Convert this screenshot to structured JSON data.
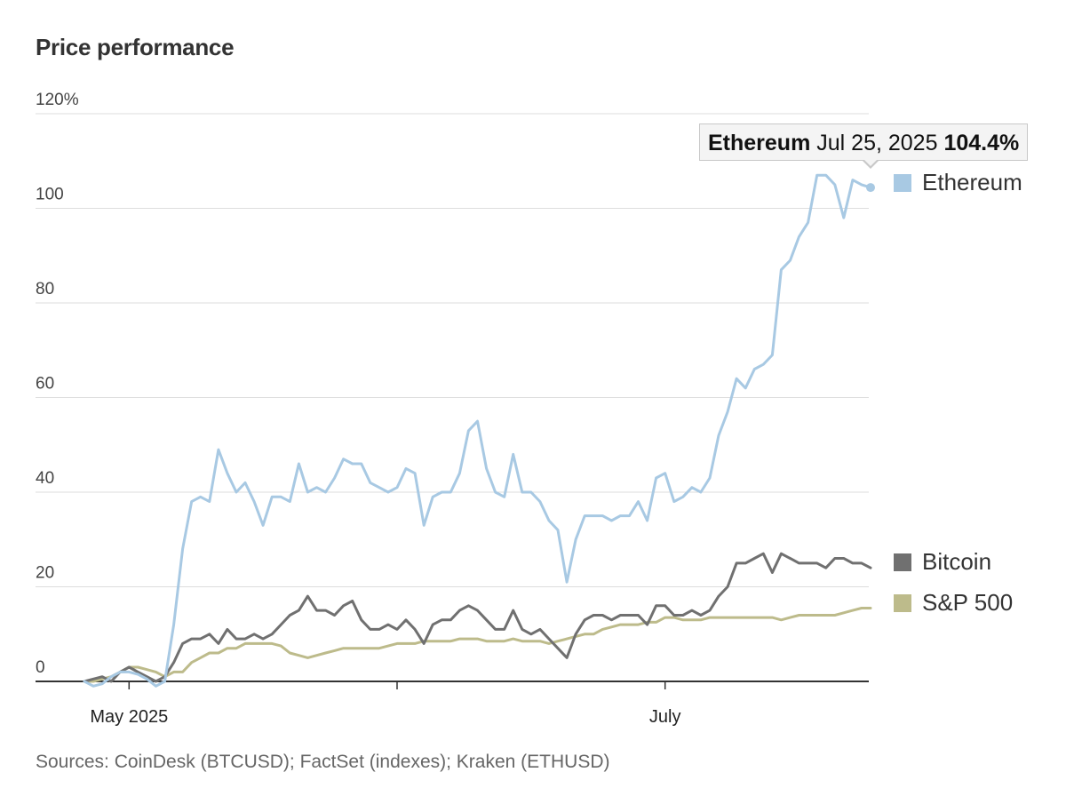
{
  "title": "Price performance",
  "source": "Sources: CoinDesk (BTCUSD); FactSet (indexes); Kraken (ETHUSD)",
  "tooltip": {
    "series": "Ethereum",
    "date": "Jul 25, 2025",
    "value": "104.4%"
  },
  "colors": {
    "ethereum": "#a8c9e3",
    "bitcoin": "#707070",
    "sp500": "#bdbb8b",
    "grid": "#dddddd",
    "axis": "#333333"
  },
  "chart_data": {
    "type": "line",
    "title": "Price performance",
    "xlabel": "",
    "ylabel": "",
    "ylim": [
      0,
      120
    ],
    "y_ticks": [
      0,
      20,
      40,
      60,
      80,
      100,
      120
    ],
    "y_tick_labels": [
      "0",
      "20",
      "40",
      "60",
      "80",
      "100",
      "120%"
    ],
    "x_tick_labels": [
      {
        "label": "May 2025",
        "day": 5
      },
      {
        "label": "",
        "day": 35
      },
      {
        "label": "July",
        "day": 65
      }
    ],
    "x_range_days": [
      0,
      88
    ],
    "legend": [
      {
        "name": "Ethereum",
        "color": "#a8c9e3"
      },
      {
        "name": "Bitcoin",
        "color": "#707070"
      },
      {
        "name": "S&P 500",
        "color": "#bdbb8b"
      }
    ],
    "series": [
      {
        "name": "Ethereum",
        "color": "#a8c9e3",
        "x": [
          0,
          1,
          2,
          3,
          4,
          5,
          6,
          7,
          8,
          9,
          10,
          11,
          12,
          13,
          14,
          15,
          16,
          17,
          18,
          19,
          20,
          21,
          22,
          23,
          24,
          25,
          26,
          27,
          28,
          29,
          30,
          31,
          32,
          33,
          34,
          35,
          36,
          37,
          38,
          39,
          40,
          41,
          42,
          43,
          44,
          45,
          46,
          47,
          48,
          49,
          50,
          51,
          52,
          53,
          54,
          55,
          56,
          57,
          58,
          59,
          60,
          61,
          62,
          63,
          64,
          65,
          66,
          67,
          68,
          69,
          70,
          71,
          72,
          73,
          74,
          75,
          76,
          77,
          78,
          79,
          80,
          81,
          82,
          83,
          84,
          85,
          86,
          87,
          88
        ],
        "values": [
          0,
          -1,
          -0.5,
          1,
          2,
          2,
          1.5,
          0.5,
          -1,
          0,
          12,
          28,
          38,
          39,
          38,
          49,
          44,
          40,
          42,
          38,
          33,
          39,
          39,
          38,
          46,
          40,
          41,
          40,
          43,
          47,
          46,
          46,
          42,
          41,
          40,
          41,
          45,
          44,
          33,
          39,
          40,
          40,
          44,
          53,
          55,
          45,
          40,
          39,
          48,
          40,
          40,
          38,
          34,
          32,
          21,
          30,
          35,
          35,
          35,
          34,
          35,
          35,
          38,
          34,
          43,
          44,
          38,
          39,
          41,
          40,
          43,
          52,
          57,
          64,
          62,
          66,
          67,
          69,
          87,
          89,
          94,
          97,
          107,
          107,
          105,
          98,
          106,
          105,
          104.4
        ]
      },
      {
        "name": "Bitcoin",
        "color": "#707070",
        "x": [
          0,
          1,
          2,
          3,
          4,
          5,
          6,
          7,
          8,
          9,
          10,
          11,
          12,
          13,
          14,
          15,
          16,
          17,
          18,
          19,
          20,
          21,
          22,
          23,
          24,
          25,
          26,
          27,
          28,
          29,
          30,
          31,
          32,
          33,
          34,
          35,
          36,
          37,
          38,
          39,
          40,
          41,
          42,
          43,
          44,
          45,
          46,
          47,
          48,
          49,
          50,
          51,
          52,
          53,
          54,
          55,
          56,
          57,
          58,
          59,
          60,
          61,
          62,
          63,
          64,
          65,
          66,
          67,
          68,
          69,
          70,
          71,
          72,
          73,
          74,
          75,
          76,
          77,
          78,
          79,
          80,
          81,
          82,
          83,
          84,
          85,
          86,
          87,
          88
        ],
        "values": [
          0,
          0.5,
          1,
          0,
          2,
          3,
          2,
          1,
          0,
          1,
          4,
          8,
          9,
          9,
          10,
          8,
          11,
          9,
          9,
          10,
          9,
          10,
          12,
          14,
          15,
          18,
          15,
          15,
          14,
          16,
          17,
          13,
          11,
          11,
          12,
          11,
          13,
          11,
          8,
          12,
          13,
          13,
          15,
          16,
          15,
          13,
          11,
          11,
          15,
          11,
          10,
          11,
          9,
          7,
          5,
          10,
          13,
          14,
          14,
          13,
          14,
          14,
          14,
          12,
          16,
          16,
          14,
          14,
          15,
          14,
          15,
          18,
          20,
          25,
          25,
          26,
          27,
          23,
          27,
          26,
          25,
          25,
          25,
          24,
          26,
          26,
          25,
          25,
          24
        ]
      },
      {
        "name": "S&P 500",
        "color": "#bdbb8b",
        "x": [
          0,
          1,
          2,
          3,
          4,
          5,
          6,
          7,
          8,
          9,
          10,
          11,
          12,
          13,
          14,
          15,
          16,
          17,
          18,
          19,
          20,
          21,
          22,
          23,
          24,
          25,
          26,
          27,
          28,
          29,
          30,
          31,
          32,
          33,
          34,
          35,
          36,
          37,
          38,
          39,
          40,
          41,
          42,
          43,
          44,
          45,
          46,
          47,
          48,
          49,
          50,
          51,
          52,
          53,
          54,
          55,
          56,
          57,
          58,
          59,
          60,
          61,
          62,
          63,
          64,
          65,
          66,
          67,
          68,
          69,
          70,
          71,
          72,
          73,
          74,
          75,
          76,
          77,
          78,
          79,
          80,
          81,
          82,
          83,
          84,
          85,
          86,
          87,
          88
        ],
        "values": [
          0,
          0,
          0.5,
          1,
          2,
          3,
          3,
          2.5,
          2,
          1,
          2,
          2,
          4,
          5,
          6,
          6,
          7,
          7,
          8,
          8,
          8,
          8,
          7.5,
          6,
          5.5,
          5,
          5.5,
          6,
          6.5,
          7,
          7,
          7,
          7,
          7,
          7.5,
          8,
          8,
          8,
          8.5,
          8.5,
          8.5,
          8.5,
          9,
          9,
          9,
          8.5,
          8.5,
          8.5,
          9,
          8.5,
          8.5,
          8.5,
          8,
          8.5,
          9,
          9.5,
          10,
          10,
          11,
          11.5,
          12,
          12,
          12,
          12.5,
          12.5,
          13.5,
          13.5,
          13,
          13,
          13,
          13.5,
          13.5,
          13.5,
          13.5,
          13.5,
          13.5,
          13.5,
          13.5,
          13,
          13.5,
          14,
          14,
          14,
          14,
          14,
          14.5,
          15,
          15.5,
          15.5
        ]
      }
    ]
  }
}
